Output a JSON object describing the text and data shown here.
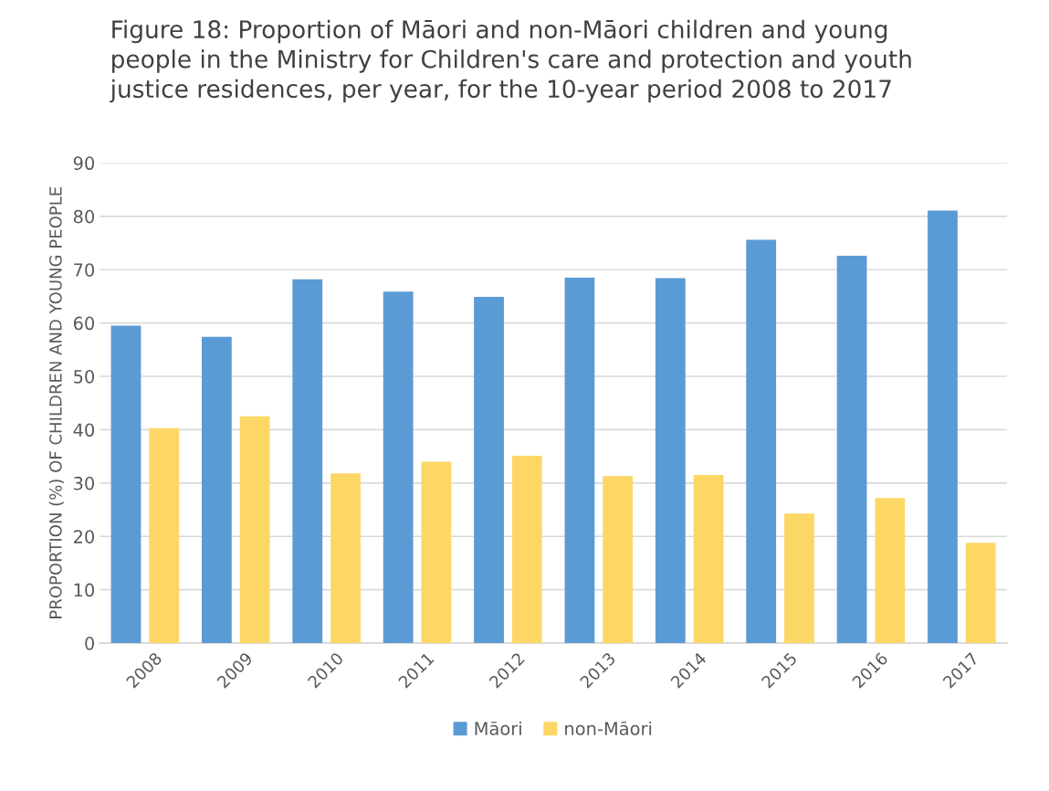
{
  "chart_data": {
    "type": "bar",
    "title": "Figure 18: Proportion of Māori and non-Māori children and young\npeople in the Ministry for Children's care and protection and youth\njustice residences, per year, for the 10-year period 2008 to 2017",
    "ylabel": "PROPORTION (%) OF CHILDREN AND YOUNG PEOPLE",
    "categories": [
      "2008",
      "2009",
      "2010",
      "2011",
      "2012",
      "2013",
      "2014",
      "2015",
      "2016",
      "2017"
    ],
    "series": [
      {
        "name": "Māori",
        "color": "#5b9bd5",
        "values": [
          59.5,
          57.4,
          68.2,
          65.9,
          64.9,
          68.5,
          68.4,
          75.6,
          72.6,
          81.1
        ]
      },
      {
        "name": "non-Māori",
        "color": "#fdd766",
        "values": [
          40.3,
          42.5,
          31.8,
          34.0,
          35.1,
          31.3,
          31.5,
          24.3,
          27.2,
          18.8
        ]
      }
    ],
    "ylim": [
      0,
      90
    ],
    "yticks": [
      0,
      10,
      20,
      30,
      40,
      50,
      60,
      70,
      80,
      90
    ],
    "grid": "y",
    "legend": "bottom"
  }
}
